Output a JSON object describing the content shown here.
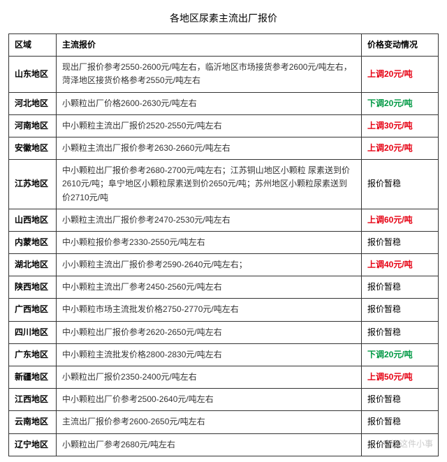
{
  "title": "各地区尿素主流出厂报价",
  "columns": [
    "区域",
    "主流报价",
    "价格变动情况"
  ],
  "rows": [
    {
      "region": "山东地区",
      "price": "现出厂报价参考2550-2600元/吨左右，临沂地区市场接货参考2600元/吨左右，菏泽地区接货价格参考2550元/吨左右",
      "change": "上调20元/吨",
      "changeType": "up"
    },
    {
      "region": "河北地区",
      "price": "小颗粒出厂价格2600-2630元/吨左右",
      "change": "下调20元/吨",
      "changeType": "down"
    },
    {
      "region": "河南地区",
      "price": "中小颗粒主流出厂报价2520-2550元/吨左右",
      "change": "上调30元/吨",
      "changeType": "up"
    },
    {
      "region": "安徽地区",
      "price": "小颗粒主流出厂报价参考2630-2660元/吨左右",
      "change": "上调20元/吨",
      "changeType": "up"
    },
    {
      "region": "江苏地区",
      "price": "中小颗粒出厂报价参考2680-2700元/吨左右；江苏铜山地区小颗粒 尿素送到价2610元/吨；阜宁地区小颗粒尿素送到价2650元/吨；苏州地区小颗粒尿素送到价2710元/吨",
      "change": "报价暂稳",
      "changeType": "stable"
    },
    {
      "region": "山西地区",
      "price": "小颗粒主流出厂报价参考2470-2530元/吨左右",
      "change": "上调60元/吨",
      "changeType": "up"
    },
    {
      "region": "内蒙地区",
      "price": "中小颗粒报价参考2330-2550元/吨左右",
      "change": "报价暂稳",
      "changeType": "stable"
    },
    {
      "region": "湖北地区",
      "price": "小小颗粒主流出厂报价参考2590-2640元/吨左右；",
      "change": "上调40元/吨",
      "changeType": "up"
    },
    {
      "region": "陕西地区",
      "price": "中小颗粒主流出厂参考2450-2560元/吨左右",
      "change": "报价暂稳",
      "changeType": "stable"
    },
    {
      "region": "广西地区",
      "price": "中小颗粒市场主流批发价格2750-2770元/吨左右",
      "change": "报价暂稳",
      "changeType": "stable"
    },
    {
      "region": "四川地区",
      "price": "中小颗粒出厂报价参考2620-2650元/吨左右",
      "change": "报价暂稳",
      "changeType": "stable"
    },
    {
      "region": "广东地区",
      "price": "中小颗粒主流批发价格2800-2830元/吨左右",
      "change": "下调20元/吨",
      "changeType": "down"
    },
    {
      "region": "新疆地区",
      "price": "小颗粒出厂报价2350-2400元/吨左右",
      "change": "上调50元/吨",
      "changeType": "up"
    },
    {
      "region": "江西地区",
      "price": "中小颗粒出厂价参考2500-2640元/吨左右",
      "change": "报价暂稳",
      "changeType": "stable"
    },
    {
      "region": "云南地区",
      "price": "主流出厂报价参考2600-2650元/吨左右",
      "change": "报价暂稳",
      "changeType": "stable"
    },
    {
      "region": "辽宁地区",
      "price": "小颗粒出厂参考2680元/吨左右",
      "change": "报价暂稳",
      "changeType": "stable"
    }
  ],
  "watermark": "农资这件小事",
  "colors": {
    "up": "#e60012",
    "down": "#009944",
    "stable": "#000000",
    "border": "#333333",
    "text": "#000000"
  }
}
